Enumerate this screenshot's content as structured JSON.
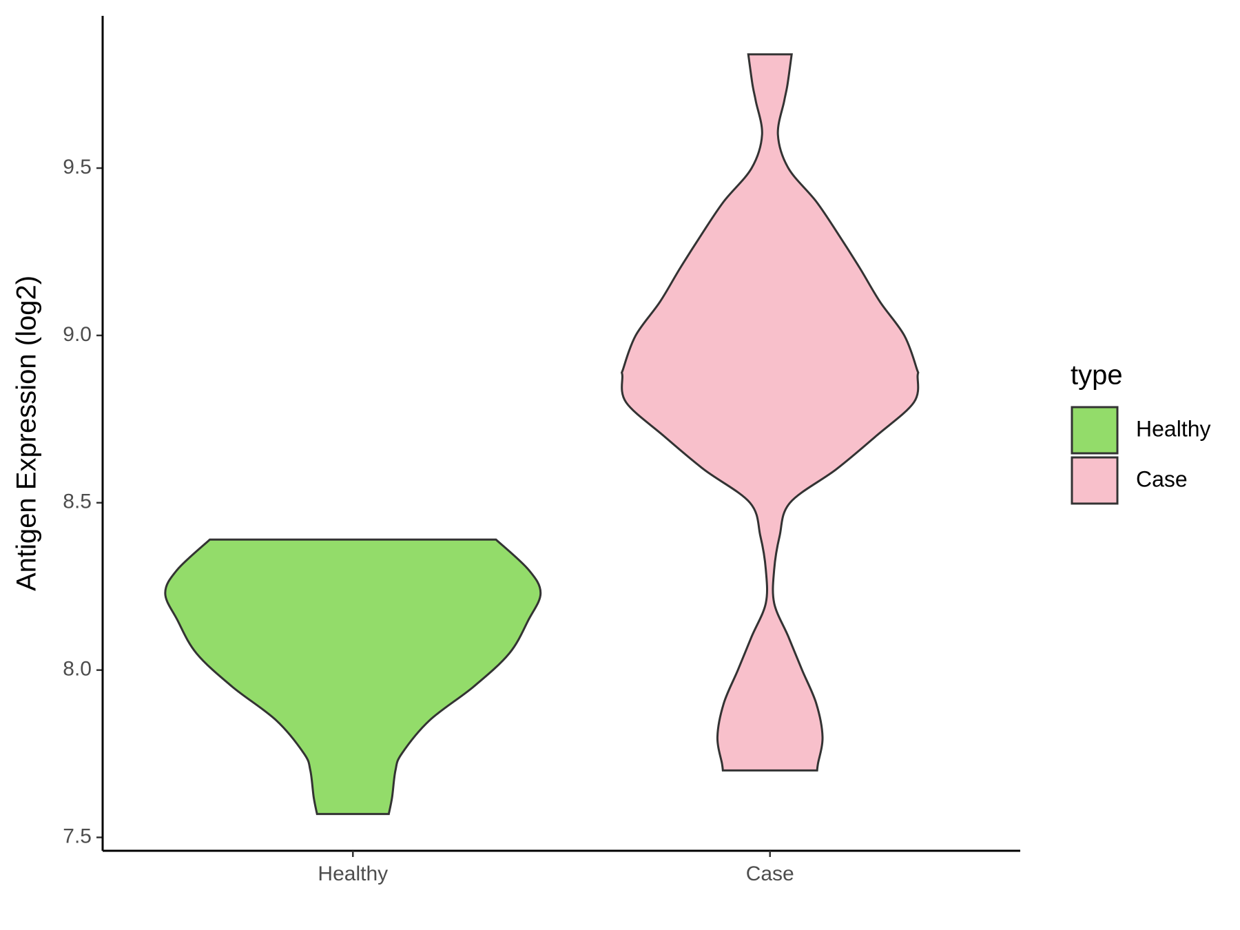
{
  "chart_data": {
    "type": "violin",
    "y_label": "Antigen Expression (log2)",
    "categories": [
      "Healthy",
      "Case"
    ],
    "series": [
      {
        "name": "Healthy",
        "color": "#93dc6a",
        "y": [
          8.39,
          8.3,
          8.23,
          8.15,
          8.05,
          7.95,
          7.85,
          7.75,
          7.7,
          7.62,
          7.57
        ],
        "half_width": [
          0.343,
          0.421,
          0.45,
          0.421,
          0.375,
          0.289,
          0.184,
          0.117,
          0.102,
          0.094,
          0.086
        ]
      },
      {
        "name": "Case",
        "color": "#f8c0cb",
        "y": [
          9.84,
          9.75,
          9.7,
          9.6,
          9.5,
          9.4,
          9.3,
          9.2,
          9.1,
          9.0,
          8.9,
          8.88,
          8.8,
          8.7,
          8.6,
          8.5,
          8.4,
          8.3,
          8.2,
          8.1,
          8.0,
          7.9,
          7.8,
          7.72,
          7.7
        ],
        "half_width": [
          0.052,
          0.042,
          0.034,
          0.019,
          0.044,
          0.111,
          0.165,
          0.216,
          0.264,
          0.322,
          0.352,
          0.354,
          0.345,
          0.255,
          0.159,
          0.048,
          0.023,
          0.01,
          0.01,
          0.044,
          0.077,
          0.111,
          0.126,
          0.115,
          0.113
        ]
      }
    ],
    "ylim": [
      7.46,
      9.955
    ],
    "yticks": [
      7.5,
      {
        "value": 8,
        "label": "8.0"
      },
      8.5,
      {
        "value": 9,
        "label": "9.0"
      },
      9.5
    ],
    "legend_title": "type",
    "legend": "right"
  }
}
